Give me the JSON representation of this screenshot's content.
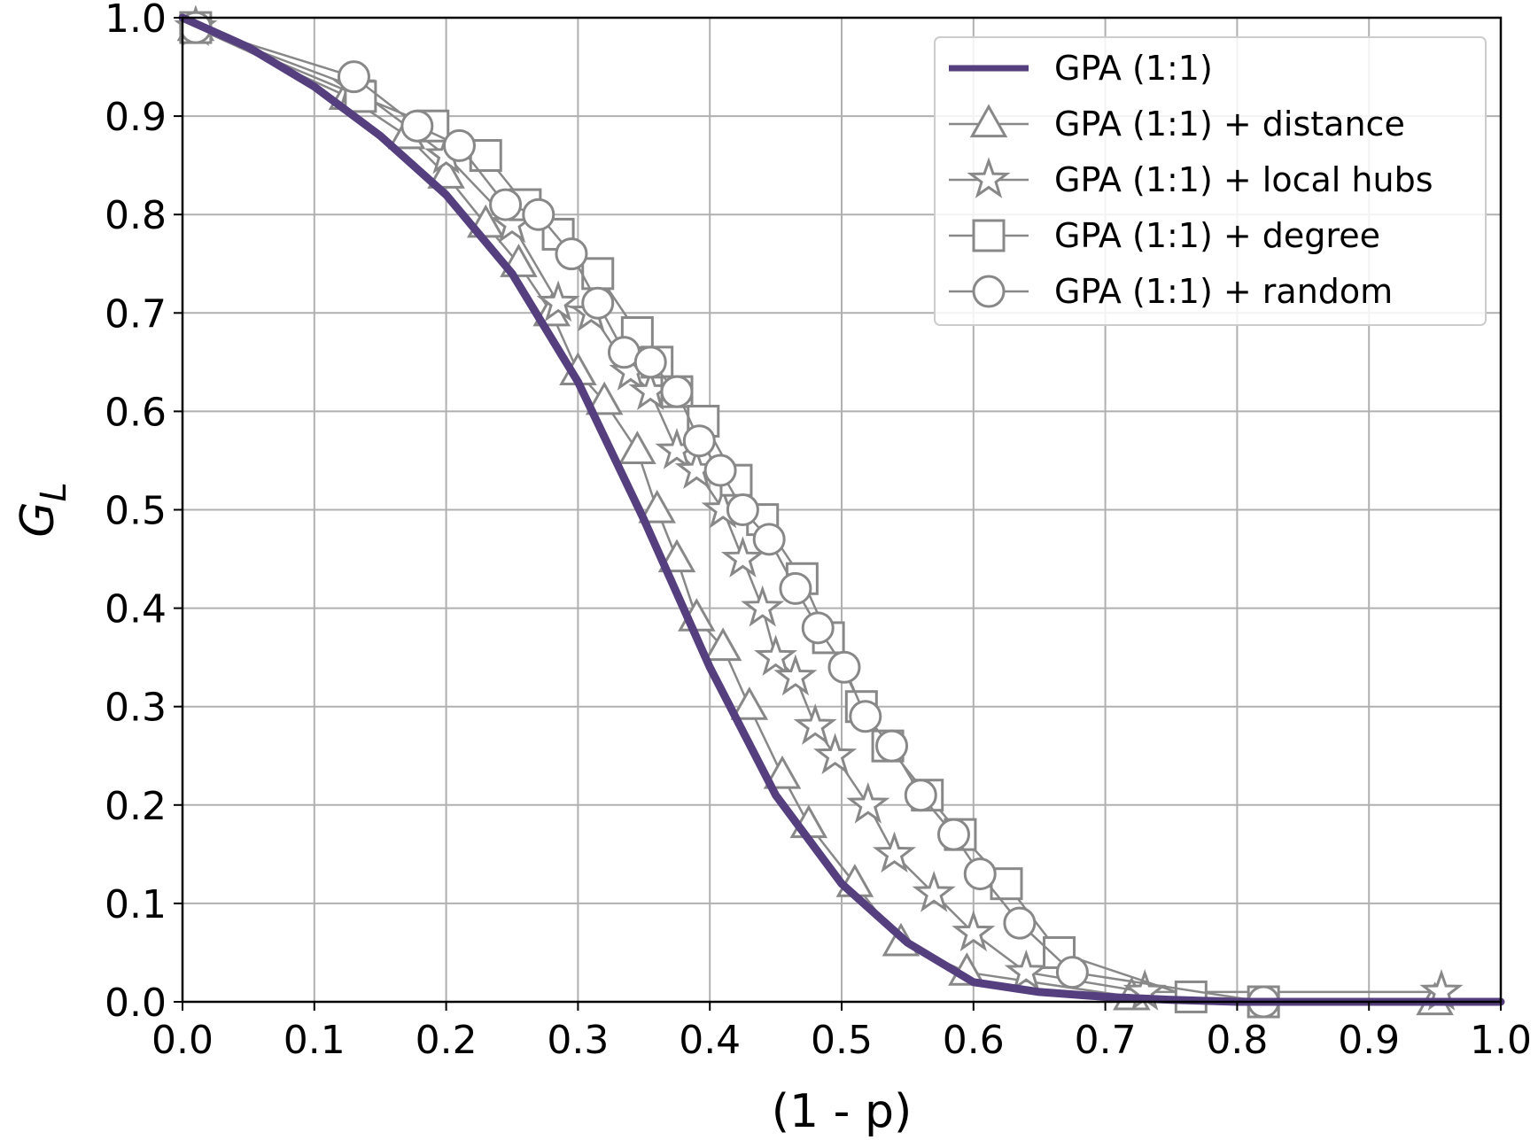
{
  "chart_data": {
    "type": "line",
    "title": "",
    "xlabel": "(1 - p)",
    "ylabel_main": "G",
    "ylabel_sub": "L",
    "xlim": [
      0.0,
      1.0
    ],
    "ylim": [
      0.0,
      1.0
    ],
    "x_ticks": [
      "0.0",
      "0.1",
      "0.2",
      "0.3",
      "0.4",
      "0.5",
      "0.6",
      "0.7",
      "0.8",
      "0.9",
      "1.0"
    ],
    "y_ticks": [
      "0.0",
      "0.1",
      "0.2",
      "0.3",
      "0.4",
      "0.5",
      "0.6",
      "0.7",
      "0.8",
      "0.9",
      "1.0"
    ],
    "grid": true,
    "legend_position": "top-right",
    "series": [
      {
        "name": "GPA (1:1)",
        "marker": "none",
        "color": "#553f7e",
        "x": [
          0.0,
          0.05,
          0.1,
          0.15,
          0.2,
          0.25,
          0.3,
          0.35,
          0.4,
          0.45,
          0.5,
          0.55,
          0.6,
          0.65,
          0.7,
          0.75,
          0.8,
          1.0
        ],
        "y": [
          1.0,
          0.97,
          0.93,
          0.88,
          0.82,
          0.74,
          0.63,
          0.49,
          0.34,
          0.21,
          0.12,
          0.06,
          0.02,
          0.01,
          0.005,
          0.002,
          0.0,
          0.0
        ]
      },
      {
        "name": "GPA (1:1) + distance",
        "marker": "triangle",
        "color": "#888888",
        "x": [
          0.01,
          0.125,
          0.17,
          0.2,
          0.23,
          0.255,
          0.28,
          0.3,
          0.32,
          0.345,
          0.36,
          0.375,
          0.39,
          0.41,
          0.43,
          0.455,
          0.475,
          0.51,
          0.545,
          0.595,
          0.72,
          0.95
        ],
        "y": [
          0.99,
          0.92,
          0.88,
          0.84,
          0.79,
          0.75,
          0.7,
          0.64,
          0.61,
          0.56,
          0.5,
          0.45,
          0.39,
          0.36,
          0.3,
          0.23,
          0.18,
          0.12,
          0.06,
          0.03,
          0.005,
          0.0
        ]
      },
      {
        "name": "GPA (1:1) + local hubs",
        "marker": "star",
        "color": "#888888",
        "x": [
          0.01,
          0.13,
          0.2,
          0.25,
          0.285,
          0.31,
          0.34,
          0.355,
          0.375,
          0.39,
          0.41,
          0.425,
          0.44,
          0.45,
          0.465,
          0.48,
          0.495,
          0.52,
          0.54,
          0.57,
          0.6,
          0.64,
          0.73,
          0.955
        ],
        "y": [
          0.99,
          0.93,
          0.86,
          0.79,
          0.71,
          0.7,
          0.64,
          0.62,
          0.56,
          0.54,
          0.5,
          0.45,
          0.4,
          0.35,
          0.33,
          0.28,
          0.25,
          0.2,
          0.15,
          0.11,
          0.07,
          0.03,
          0.01,
          0.01
        ]
      },
      {
        "name": "GPA (1:1) + degree",
        "marker": "square",
        "color": "#888888",
        "x": [
          0.01,
          0.135,
          0.19,
          0.23,
          0.26,
          0.285,
          0.315,
          0.345,
          0.36,
          0.375,
          0.395,
          0.42,
          0.44,
          0.47,
          0.49,
          0.515,
          0.535,
          0.565,
          0.59,
          0.625,
          0.665,
          0.765,
          0.82
        ],
        "y": [
          0.99,
          0.92,
          0.89,
          0.86,
          0.81,
          0.78,
          0.74,
          0.68,
          0.65,
          0.62,
          0.59,
          0.53,
          0.49,
          0.43,
          0.37,
          0.3,
          0.26,
          0.21,
          0.17,
          0.12,
          0.05,
          0.005,
          0.0
        ]
      },
      {
        "name": "GPA (1:1) + random",
        "marker": "circle",
        "color": "#888888",
        "x": [
          0.01,
          0.13,
          0.178,
          0.21,
          0.245,
          0.27,
          0.295,
          0.315,
          0.335,
          0.355,
          0.375,
          0.392,
          0.408,
          0.425,
          0.445,
          0.465,
          0.482,
          0.502,
          0.518,
          0.538,
          0.56,
          0.585,
          0.605,
          0.635,
          0.675,
          0.82
        ],
        "y": [
          0.99,
          0.94,
          0.89,
          0.87,
          0.81,
          0.8,
          0.76,
          0.71,
          0.66,
          0.65,
          0.62,
          0.57,
          0.54,
          0.5,
          0.47,
          0.42,
          0.38,
          0.34,
          0.29,
          0.26,
          0.21,
          0.17,
          0.13,
          0.08,
          0.03,
          0.0
        ]
      }
    ]
  }
}
